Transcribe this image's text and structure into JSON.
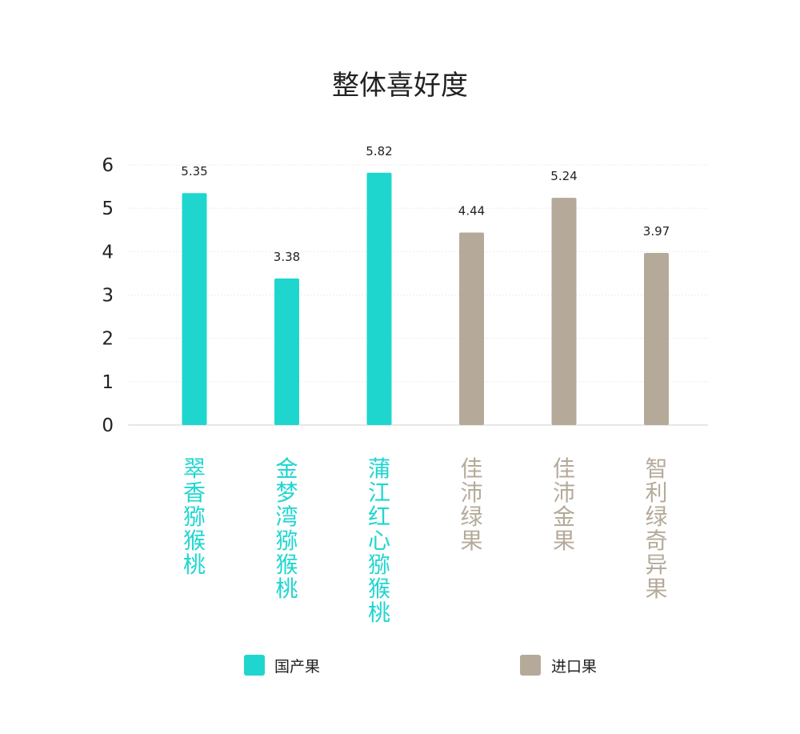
{
  "chart_data": {
    "type": "bar",
    "title": "整体喜好度",
    "xlabel": "",
    "ylabel": "",
    "ylim": [
      0,
      6
    ],
    "yticks": [
      0,
      1,
      2,
      3,
      4,
      5,
      6
    ],
    "grid": true,
    "legend_position": "bottom",
    "categories": [
      "翠香猕猴桃",
      "金梦湾猕猴桃",
      "蒲江红心猕猴桃",
      "佳沛绿果",
      "佳沛金果",
      "智利绿奇异果"
    ],
    "values": [
      5.35,
      3.38,
      5.82,
      4.44,
      5.24,
      3.97
    ],
    "value_labels": [
      "5.35",
      "3.38",
      "5.82",
      "4.44",
      "5.24",
      "3.97"
    ],
    "groups": [
      "国产果",
      "国产果",
      "国产果",
      "进口果",
      "进口果",
      "进口果"
    ],
    "legend": [
      {
        "name": "国产果",
        "color": "#1fd6cf"
      },
      {
        "name": "进口果",
        "color": "#b5aa9a"
      }
    ]
  }
}
